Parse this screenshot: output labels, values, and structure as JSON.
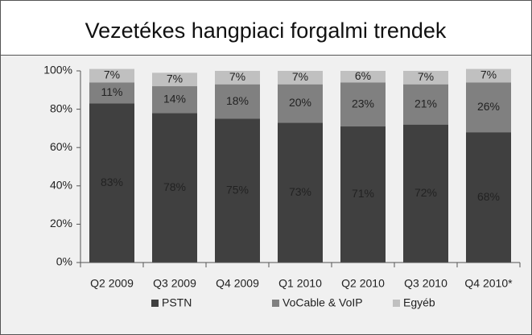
{
  "chart_data": {
    "type": "stacked_bar",
    "title": "Vezetékes hangpiaci forgalmi trendek",
    "categories": [
      "Q2 2009",
      "Q3 2009",
      "Q4 2009",
      "Q1 2010",
      "Q2 2010",
      "Q3 2010",
      "Q4 2010*"
    ],
    "series": [
      {
        "name": "PSTN",
        "color": "#404040",
        "values": [
          83,
          78,
          75,
          73,
          71,
          72,
          68
        ],
        "value_labels": [
          "83%",
          "78%",
          "75%",
          "73%",
          "71%",
          "72%",
          "68%"
        ]
      },
      {
        "name": "VoCable & VoIP",
        "color": "#808080",
        "values": [
          11,
          14,
          18,
          20,
          23,
          21,
          26
        ],
        "value_labels": [
          "11%",
          "14%",
          "18%",
          "20%",
          "23%",
          "21%",
          "26%"
        ]
      },
      {
        "name": "Egyéb",
        "color": "#c0c0c0",
        "values": [
          7,
          7,
          7,
          7,
          6,
          7,
          7
        ],
        "value_labels": [
          "7%",
          "7%",
          "7%",
          "7%",
          "6%",
          "7%",
          "7%"
        ]
      }
    ],
    "ylim": [
      0,
      100
    ],
    "yticks": [
      {
        "value": 0,
        "label": "0%"
      },
      {
        "value": 20,
        "label": "20%"
      },
      {
        "value": 40,
        "label": "40%"
      },
      {
        "value": 60,
        "label": "60%"
      },
      {
        "value": 80,
        "label": "80%"
      },
      {
        "value": 100,
        "label": "100%"
      }
    ],
    "legend": "bottom"
  }
}
